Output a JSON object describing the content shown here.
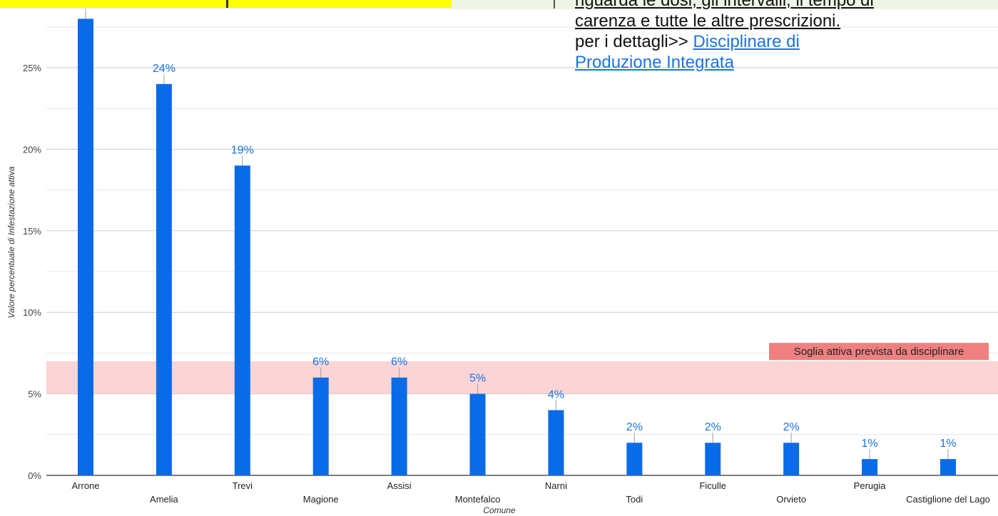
{
  "chart_data": {
    "type": "bar",
    "categories": [
      "Arrone",
      "Amelia",
      "Trevi",
      "Magione",
      "Assisi",
      "Montefalco",
      "Narni",
      "Todi",
      "Ficulle",
      "Orvieto",
      "Perugia",
      "Castiglione del Lago"
    ],
    "values": [
      28,
      24,
      19,
      6,
      6,
      5,
      4,
      2,
      2,
      2,
      1,
      1
    ],
    "value_labels": [
      "",
      "24%",
      "19%",
      "6%",
      "6%",
      "5%",
      "4%",
      "2%",
      "2%",
      "2%",
      "1%",
      "1%"
    ],
    "xlabel": "Comune",
    "ylabel": "Valore percentuale di Infestazione attiva",
    "ylim": [
      0,
      27.5
    ],
    "yticks": [
      0,
      5,
      10,
      15,
      20,
      25
    ],
    "ytick_labels": [
      "0%",
      "5%",
      "10%",
      "15%",
      "20%",
      "25%"
    ],
    "grid": true,
    "bar_color": "#0a6be8",
    "threshold_band": {
      "from": 5,
      "to": 7,
      "label": "Soglia attiva prevista da disciplinare",
      "fill_color": "#fbd5d5",
      "label_bg": "#f08080"
    }
  },
  "info": {
    "line1": "riguarda le dosi, gli intervalli, il tempo di",
    "line2": "carenza e tutte le altre prescrizioni.",
    "line3_prefix": "per i dettagli>> ",
    "link_line1": "Disciplinare di",
    "link_line2": "Produzione Integrata",
    "link_color": "#1a73e8"
  },
  "colors": {
    "top_strip": "#ffff00",
    "top_band": "#eef5e6"
  }
}
